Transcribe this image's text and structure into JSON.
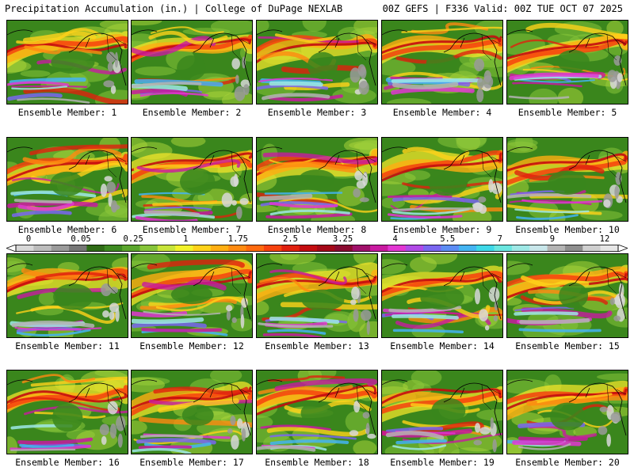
{
  "header": {
    "left_title": "Precipitation Accumulation (in.) | College of DuPage NEXLAB",
    "right_title": "00Z GEFS | F336 Valid: 00Z TUE OCT 07 2025"
  },
  "map": {
    "region": "North Pacific / Alaska / Western North America",
    "variable": "Precipitation Accumulation",
    "units": "in.",
    "model": "GEFS",
    "run": "00Z",
    "forecast_hour": "F336",
    "valid_time": "00Z TUE OCT 07 2025",
    "source": "College of DuPage NEXLAB"
  },
  "members": [
    {
      "label": "Ensemble Member: 1"
    },
    {
      "label": "Ensemble Member: 2"
    },
    {
      "label": "Ensemble Member: 3"
    },
    {
      "label": "Ensemble Member: 4"
    },
    {
      "label": "Ensemble Member: 5"
    },
    {
      "label": "Ensemble Member: 6"
    },
    {
      "label": "Ensemble Member: 7"
    },
    {
      "label": "Ensemble Member: 8"
    },
    {
      "label": "Ensemble Member: 9"
    },
    {
      "label": "Ensemble Member: 10"
    },
    {
      "label": "Ensemble Member: 11"
    },
    {
      "label": "Ensemble Member: 12"
    },
    {
      "label": "Ensemble Member: 13"
    },
    {
      "label": "Ensemble Member: 14"
    },
    {
      "label": "Ensemble Member: 15"
    },
    {
      "label": "Ensemble Member: 16"
    },
    {
      "label": "Ensemble Member: 17"
    },
    {
      "label": "Ensemble Member: 18"
    },
    {
      "label": "Ensemble Member: 19"
    },
    {
      "label": "Ensemble Member: 20"
    }
  ],
  "colorbar": {
    "tick_labels": [
      "0",
      "0.05",
      "0.25",
      "1",
      "1.75",
      "2.5",
      "3.25",
      "4",
      "5.5",
      "7",
      "9",
      "12"
    ],
    "colors": [
      "#d8d8d8",
      "#bcbcbc",
      "#9a9a9a",
      "#767676",
      "#2f6b16",
      "#3e8a22",
      "#5aa52c",
      "#86c43a",
      "#c7e43a",
      "#f2f22a",
      "#ffd21a",
      "#ffae12",
      "#ff8a10",
      "#ff6a0e",
      "#f6420e",
      "#e0200e",
      "#c40c10",
      "#a50818",
      "#8a0a30",
      "#a0106a",
      "#c81aa0",
      "#e236d2",
      "#b04ae6",
      "#7a66f0",
      "#5c8cf4",
      "#44b4f2",
      "#3ed8e8",
      "#6ae6e0",
      "#9ee8e6",
      "#c8e6ea",
      "#b4b4b4",
      "#8e8e8e",
      "#cfcfcf",
      "#e6e6e6"
    ]
  }
}
